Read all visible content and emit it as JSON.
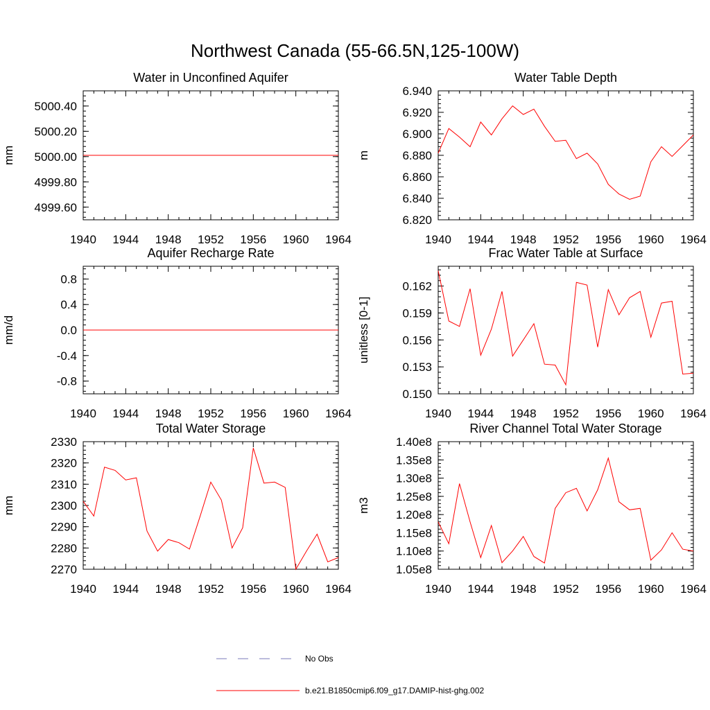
{
  "figure_title": "Northwest Canada (55-66.5N,125-100W)",
  "chart_data": [
    {
      "type": "line",
      "title": "Water in Unconfined Aquifer",
      "ylabel": "mm",
      "xlim": [
        1940,
        1964
      ],
      "ylim": [
        4999.5,
        5000.52
      ],
      "xticks": [
        1940,
        1944,
        1948,
        1952,
        1956,
        1960,
        1964
      ],
      "yticks": [
        4999.6,
        4999.8,
        5000.0,
        5000.2,
        5000.4
      ],
      "ytick_labels": [
        "4999.60",
        "4999.80",
        "5000.00",
        "5000.20",
        "5000.40"
      ],
      "x": [
        1940,
        1941,
        1942,
        1943,
        1944,
        1945,
        1946,
        1947,
        1948,
        1949,
        1950,
        1951,
        1952,
        1953,
        1954,
        1955,
        1956,
        1957,
        1958,
        1959,
        1960,
        1961,
        1962,
        1963,
        1964
      ],
      "series": [
        {
          "values": [
            5000.01,
            5000.01,
            5000.01,
            5000.01,
            5000.01,
            5000.01,
            5000.01,
            5000.01,
            5000.01,
            5000.01,
            5000.01,
            5000.01,
            5000.01,
            5000.01,
            5000.01,
            5000.01,
            5000.01,
            5000.01,
            5000.01,
            5000.01,
            5000.01,
            5000.01,
            5000.01,
            5000.01,
            5000.01
          ]
        }
      ]
    },
    {
      "type": "line",
      "title": "Water Table Depth",
      "ylabel": "m",
      "xlim": [
        1940,
        1964
      ],
      "ylim": [
        6.82,
        6.94
      ],
      "xticks": [
        1940,
        1944,
        1948,
        1952,
        1956,
        1960,
        1964
      ],
      "yticks": [
        6.82,
        6.84,
        6.86,
        6.88,
        6.9,
        6.92,
        6.94
      ],
      "ytick_labels": [
        "6.820",
        "6.840",
        "6.860",
        "6.880",
        "6.900",
        "6.920",
        "6.940"
      ],
      "x": [
        1940,
        1941,
        1942,
        1943,
        1944,
        1945,
        1946,
        1947,
        1948,
        1949,
        1950,
        1951,
        1952,
        1953,
        1954,
        1955,
        1956,
        1957,
        1958,
        1959,
        1960,
        1961,
        1962,
        1963,
        1964
      ],
      "series": [
        {
          "values": [
            6.882,
            6.905,
            6.897,
            6.888,
            6.911,
            6.899,
            6.914,
            6.926,
            6.918,
            6.923,
            6.907,
            6.893,
            6.894,
            6.877,
            6.882,
            6.872,
            6.853,
            6.844,
            6.839,
            6.842,
            6.874,
            6.888,
            6.879,
            6.889,
            6.899
          ]
        }
      ]
    },
    {
      "type": "line",
      "title": "Aquifer Recharge Rate",
      "ylabel": "mm/d",
      "xlim": [
        1940,
        1964
      ],
      "ylim": [
        -1.0,
        1.0
      ],
      "xticks": [
        1940,
        1944,
        1948,
        1952,
        1956,
        1960,
        1964
      ],
      "yticks": [
        -0.8,
        -0.4,
        0.0,
        0.4,
        0.8
      ],
      "ytick_labels": [
        "-0.8",
        "-0.4",
        "0.0",
        "0.4",
        "0.8"
      ],
      "x": [
        1940,
        1941,
        1942,
        1943,
        1944,
        1945,
        1946,
        1947,
        1948,
        1949,
        1950,
        1951,
        1952,
        1953,
        1954,
        1955,
        1956,
        1957,
        1958,
        1959,
        1960,
        1961,
        1962,
        1963,
        1964
      ],
      "series": [
        {
          "values": [
            0,
            0,
            0,
            0,
            0,
            0,
            0,
            0,
            0,
            0,
            0,
            0,
            0,
            0,
            0,
            0,
            0,
            0,
            0,
            0,
            0,
            0,
            0,
            0,
            0
          ]
        }
      ]
    },
    {
      "type": "line",
      "title": "Frac Water Table at Surface",
      "ylabel": "unitless [0-1]",
      "xlim": [
        1940,
        1964
      ],
      "ylim": [
        0.15,
        0.1642
      ],
      "xticks": [
        1940,
        1944,
        1948,
        1952,
        1956,
        1960,
        1964
      ],
      "yticks": [
        0.15,
        0.153,
        0.156,
        0.159,
        0.162
      ],
      "ytick_labels": [
        "0.150",
        "0.153",
        "0.156",
        "0.159",
        "0.162"
      ],
      "x": [
        1940,
        1941,
        1942,
        1943,
        1944,
        1945,
        1946,
        1947,
        1948,
        1949,
        1950,
        1951,
        1952,
        1953,
        1954,
        1955,
        1956,
        1957,
        1958,
        1959,
        1960,
        1961,
        1962,
        1963,
        1964
      ],
      "series": [
        {
          "values": [
            0.1637,
            0.1581,
            0.1575,
            0.1617,
            0.1543,
            0.1572,
            0.1614,
            0.1542,
            0.156,
            0.1578,
            0.1533,
            0.1532,
            0.151,
            0.1624,
            0.1621,
            0.1552,
            0.1616,
            0.1588,
            0.1607,
            0.1614,
            0.1563,
            0.1601,
            0.1603,
            0.1522,
            0.1523
          ]
        }
      ]
    },
    {
      "type": "line",
      "title": "Total Water Storage",
      "ylabel": "mm",
      "xlim": [
        1940,
        1964
      ],
      "ylim": [
        2270,
        2330
      ],
      "xticks": [
        1940,
        1944,
        1948,
        1952,
        1956,
        1960,
        1964
      ],
      "yticks": [
        2270,
        2280,
        2290,
        2300,
        2310,
        2320,
        2330
      ],
      "ytick_labels": [
        "2270",
        "2280",
        "2290",
        "2300",
        "2310",
        "2320",
        "2330"
      ],
      "x": [
        1940,
        1941,
        1942,
        1943,
        1944,
        1945,
        1946,
        1947,
        1948,
        1949,
        1950,
        1951,
        1952,
        1953,
        1954,
        1955,
        1956,
        1957,
        1958,
        1959,
        1960,
        1961,
        1962,
        1963,
        1964
      ],
      "series": [
        {
          "values": [
            2302,
            2295,
            2318,
            2316.5,
            2312,
            2313,
            2288,
            2278.5,
            2284,
            2282.5,
            2279.5,
            2295,
            2311,
            2302.5,
            2280,
            2289.5,
            2327,
            2310.5,
            2311,
            2308.5,
            2270,
            2278.5,
            2286.5,
            2273.5,
            2275.5
          ]
        }
      ]
    },
    {
      "type": "line",
      "title": "River Channel Total Water Storage",
      "ylabel": "m3",
      "xlim": [
        1940,
        1964
      ],
      "ylim": [
        105000000,
        140000000
      ],
      "xticks": [
        1940,
        1944,
        1948,
        1952,
        1956,
        1960,
        1964
      ],
      "yticks": [
        105000000,
        110000000,
        115000000,
        120000000,
        125000000,
        130000000,
        135000000,
        140000000
      ],
      "ytick_labels": [
        "1.05e8",
        "1.10e8",
        "1.15e8",
        "1.20e8",
        "1.25e8",
        "1.30e8",
        "1.35e8",
        "1.40e8"
      ],
      "x": [
        1940,
        1941,
        1942,
        1943,
        1944,
        1945,
        1946,
        1947,
        1948,
        1949,
        1950,
        1951,
        1952,
        1953,
        1954,
        1955,
        1956,
        1957,
        1958,
        1959,
        1960,
        1961,
        1962,
        1963,
        1964
      ],
      "series": [
        {
          "values": [
            118000000,
            112000000,
            128500000,
            118000000,
            108200000,
            117000000,
            106800000,
            110000000,
            114000000,
            108500000,
            106700000,
            121700000,
            126000000,
            127200000,
            121000000,
            126800000,
            135500000,
            123500000,
            121300000,
            121700000,
            107500000,
            110300000,
            115000000,
            110500000,
            110000000
          ]
        }
      ]
    }
  ],
  "legend": [
    {
      "label": "No Obs",
      "color": "#7a7ab8",
      "style": "dashed"
    },
    {
      "label": "b.e21.B1850cmip6.f09_g17.DAMIP-hist-ghg.002",
      "color": "#ff0000",
      "style": "solid"
    }
  ]
}
